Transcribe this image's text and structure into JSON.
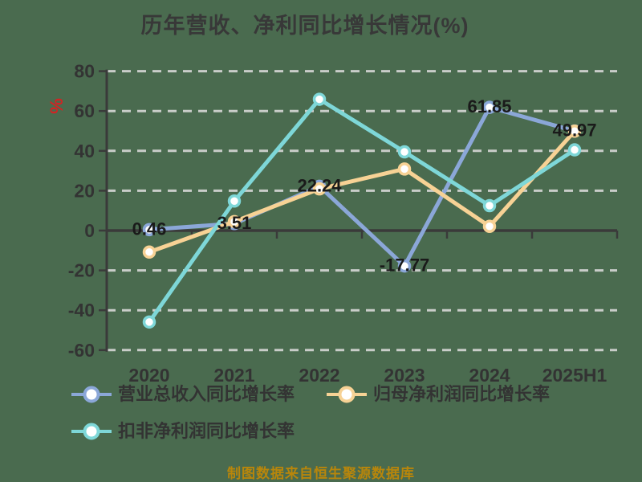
{
  "title": "历年营收、净利同比增长情况(%)",
  "y_axis_unit": "%",
  "caption": "制图数据来自恒生聚源数据库",
  "colors": {
    "background": "#4a6b4f",
    "grid": "#c9cdc9",
    "axis": "#3a3a3a",
    "tick_text": "#333333",
    "data_label_text": "#1a1a1a",
    "title_text": "#383838",
    "unit_text": "#d32323",
    "caption_text": "#b8860b",
    "marker_fill": "#ffffff"
  },
  "chart_data": {
    "type": "line",
    "title": "历年营收、净利同比增长情况(%)",
    "xlabel": "",
    "ylabel": "%",
    "ylim": [
      -60,
      80
    ],
    "ytick_step": 20,
    "grid": "dashed-horizontal",
    "legend_position": "bottom-left",
    "categories": [
      "2020",
      "2021",
      "2022",
      "2023",
      "2024",
      "2025H1"
    ],
    "series": [
      {
        "name": "营业总收入同比增长率",
        "color": "#8ba7d8",
        "labeled": true,
        "values": [
          0.46,
          3.51,
          22.24,
          -17.77,
          61.85,
          49.97
        ]
      },
      {
        "name": "归母净利润同比增长率",
        "color": "#f7d295",
        "labeled": false,
        "values": [
          -10.8,
          4.5,
          20.9,
          30.9,
          2.1,
          49.9
        ]
      },
      {
        "name": "扣非净利润同比增长率",
        "color": "#7ed7d8",
        "labeled": false,
        "values": [
          -45.9,
          14.8,
          65.9,
          39.5,
          12.5,
          40.5
        ]
      }
    ],
    "data_labels": [
      "0.46",
      "3.51",
      "22.24",
      "-17.77",
      "61.85",
      "49.97"
    ],
    "ytick_labels": [
      "80",
      "60",
      "40",
      "20",
      "0",
      "-20",
      "-40",
      "-60"
    ]
  },
  "legend": {
    "items": [
      {
        "label": "营业总收入同比增长率"
      },
      {
        "label": "归母净利润同比增长率"
      },
      {
        "label": "扣非净利润同比增长率"
      }
    ]
  }
}
